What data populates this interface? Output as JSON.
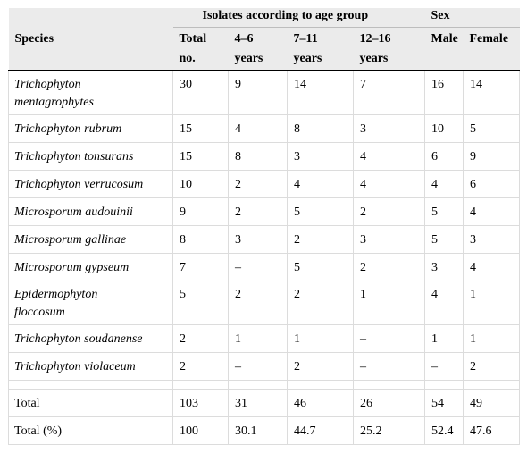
{
  "header": {
    "species": "Species",
    "age_group": "Isolates according to age group",
    "sex": "Sex",
    "columns": {
      "total_line1": "Total",
      "total_line2": "no.",
      "age1_line1": "4–6",
      "age1_line2": "years",
      "age2_line1": "7–11",
      "age2_line2": "years",
      "age3_line1": "12–16",
      "age3_line2": "years",
      "male": "Male",
      "female": "Female"
    }
  },
  "rows": [
    {
      "species_line1": "Trichophyton",
      "species_line2": "mentagrophytes",
      "total": "30",
      "a1": "9",
      "a2": "14",
      "a3": "7",
      "male": "16",
      "female": "14"
    },
    {
      "species": "Trichophyton rubrum",
      "total": "15",
      "a1": "4",
      "a2": "8",
      "a3": "3",
      "male": "10",
      "female": "5"
    },
    {
      "species": "Trichophyton tonsurans",
      "total": "15",
      "a1": "8",
      "a2": "3",
      "a3": "4",
      "male": "6",
      "female": "9"
    },
    {
      "species": "Trichophyton verrucosum",
      "total": "10",
      "a1": "2",
      "a2": "4",
      "a3": "4",
      "male": "4",
      "female": "6"
    },
    {
      "species": "Microsporum audouinii",
      "total": "9",
      "a1": "2",
      "a2": "5",
      "a3": "2",
      "male": "5",
      "female": "4"
    },
    {
      "species": "Microsporum gallinae",
      "total": "8",
      "a1": "3",
      "a2": "2",
      "a3": "3",
      "male": "5",
      "female": "3"
    },
    {
      "species": "Microsporum gypseum",
      "total": "7",
      "a1": "–",
      "a2": "5",
      "a3": "2",
      "male": "3",
      "female": "4"
    },
    {
      "species_line1": "Epidermophyton",
      "species_line2": "floccosum",
      "total": "5",
      "a1": "2",
      "a2": "2",
      "a3": "1",
      "male": "4",
      "female": "1"
    },
    {
      "species": "Trichophyton soudanense",
      "total": "2",
      "a1": "1",
      "a2": "1",
      "a3": "–",
      "male": "1",
      "female": "1"
    },
    {
      "species": "Trichophyton violaceum",
      "total": "2",
      "a1": "–",
      "a2": "2",
      "a3": "–",
      "male": "–",
      "female": "2"
    }
  ],
  "totals": [
    {
      "label": "Total",
      "total": "103",
      "a1": "31",
      "a2": "46",
      "a3": "26",
      "male": "54",
      "female": "49"
    },
    {
      "label": "Total (%)",
      "total": "100",
      "a1": "30.1",
      "a2": "44.7",
      "a3": "25.2",
      "male": "52.4",
      "female": "47.6"
    }
  ]
}
